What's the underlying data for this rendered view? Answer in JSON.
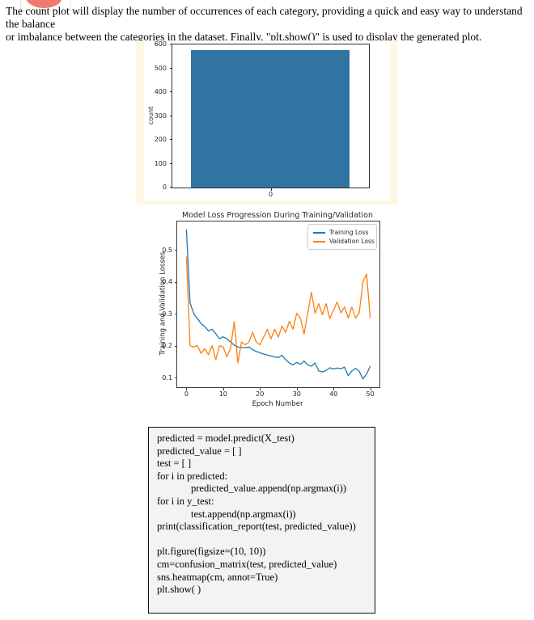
{
  "page": {
    "paragraph": "The count plot will display the number of occurrences of each category, providing a quick and easy way to understand the balance\nor imbalance between the categories in the dataset. Finally, \"plt.show()\" is used to display the generated plot."
  },
  "colors": {
    "panel_background": "#fdf7e4",
    "bar_blue": "#3274a1",
    "training_line": "#1f77b4",
    "validation_line": "#ff7f0e",
    "code_background": "#f3f3f3",
    "logo_red": "#ec7b6f"
  },
  "chart_data": [
    {
      "type": "bar",
      "title": "",
      "categories": [
        "0"
      ],
      "values": [
        575
      ],
      "xlabel": "",
      "ylabel": "count",
      "yticks": [
        0,
        100,
        200,
        300,
        400,
        500,
        600
      ],
      "ylim": [
        0,
        600
      ],
      "bar_color": "#3274a1",
      "panel_bg": "#fdf7e4",
      "grid": false
    },
    {
      "type": "line",
      "title": "Model Loss Progression During Training/Validation",
      "xlabel": "Epoch Number",
      "ylabel": "Training and Validation Losses",
      "xticks": [
        0,
        10,
        20,
        30,
        40,
        50
      ],
      "yticks": [
        0.1,
        0.2,
        0.3,
        0.4,
        0.5
      ],
      "xlim": [
        -2.5,
        52.5
      ],
      "ylim": [
        0.07,
        0.59
      ],
      "grid": false,
      "legend_position": "upper right",
      "series": [
        {
          "name": "Training Loss",
          "color": "#1f77b4",
          "values": [
            0.565,
            0.335,
            0.3,
            0.285,
            0.27,
            0.26,
            0.247,
            0.252,
            0.238,
            0.222,
            0.228,
            0.222,
            0.212,
            0.202,
            0.196,
            0.195,
            0.194,
            0.196,
            0.188,
            0.182,
            0.178,
            0.174,
            0.171,
            0.168,
            0.165,
            0.163,
            0.17,
            0.156,
            0.146,
            0.14,
            0.148,
            0.142,
            0.152,
            0.14,
            0.136,
            0.146,
            0.121,
            0.118,
            0.123,
            0.131,
            0.127,
            0.13,
            0.128,
            0.133,
            0.106,
            0.121,
            0.129,
            0.12,
            0.096,
            0.111,
            0.136
          ]
        },
        {
          "name": "Validation Loss",
          "color": "#ff7f0e",
          "values": [
            0.48,
            0.2,
            0.196,
            0.201,
            0.176,
            0.191,
            0.172,
            0.2,
            0.156,
            0.2,
            0.196,
            0.166,
            0.191,
            0.276,
            0.146,
            0.212,
            0.203,
            0.212,
            0.242,
            0.212,
            0.203,
            0.227,
            0.252,
            0.222,
            0.252,
            0.227,
            0.262,
            0.242,
            0.277,
            0.252,
            0.302,
            0.287,
            0.237,
            0.302,
            0.368,
            0.302,
            0.332,
            0.297,
            0.332,
            0.285,
            0.312,
            0.337,
            0.303,
            0.322,
            0.287,
            0.322,
            0.287,
            0.303,
            0.4,
            0.425,
            0.287
          ]
        }
      ]
    }
  ],
  "code_block": {
    "lines": [
      {
        "text": "predicted = model.predict(X_test)",
        "indent": 0
      },
      {
        "text": "predicted_value = [ ]",
        "indent": 0
      },
      {
        "text": "test = [ ]",
        "indent": 0
      },
      {
        "text": "for i in predicted:",
        "indent": 0
      },
      {
        "text": "predicted_value.append(np.argmax(i))",
        "indent": 1
      },
      {
        "text": "for i in y_test:",
        "indent": 0
      },
      {
        "text": "test.append(np.argmax(i))",
        "indent": 1
      },
      {
        "text": "print(classification_report(test, predicted_value))",
        "indent": 0
      },
      {
        "text": "",
        "indent": 0
      },
      {
        "text": "plt.figure(figsize=(10, 10))",
        "indent": 0
      },
      {
        "text": "cm=confusion_matrix(test, predicted_value)",
        "indent": 0
      },
      {
        "text": "sns.heatmap(cm, annot=True)",
        "indent": 0
      },
      {
        "text": "plt.show( )",
        "indent": 0
      }
    ]
  }
}
